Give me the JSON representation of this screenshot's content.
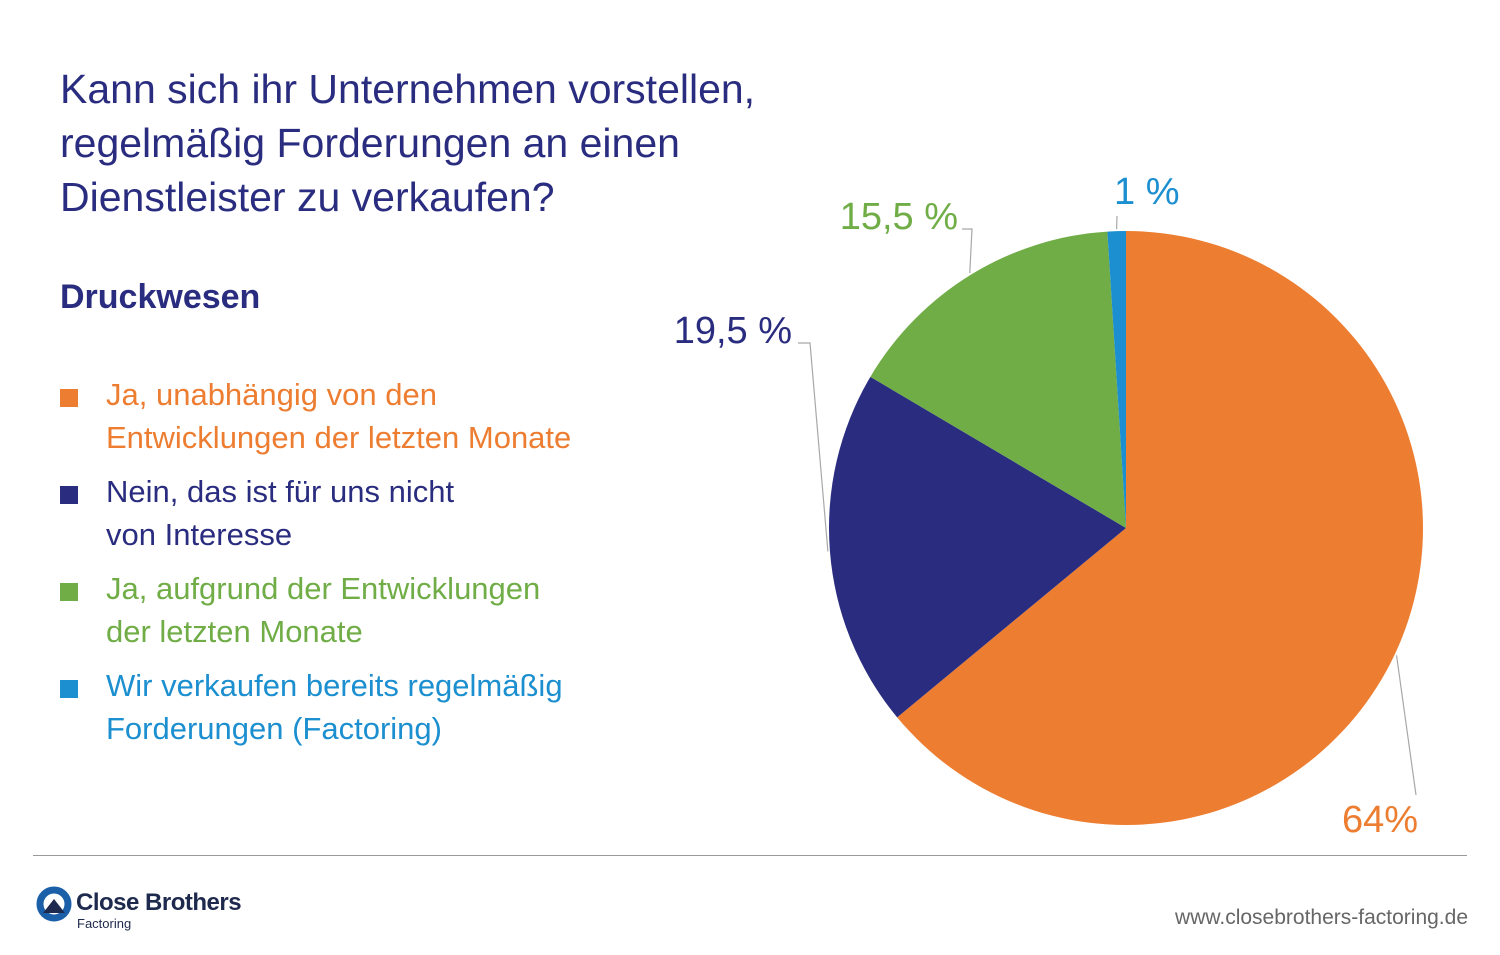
{
  "title_lines": [
    "Kann sich ihr Unternehmen vorstellen,",
    "regelmäßig Forderungen an einen",
    "Dienstleister zu verkaufen?"
  ],
  "subtitle": "Druckwesen",
  "legend": [
    {
      "lines": [
        "Ja, unabhängig von den",
        "Entwicklungen der letzten Monate"
      ],
      "color": "#ed7d31"
    },
    {
      "lines": [
        "Nein, das ist für uns nicht",
        "von Interesse"
      ],
      "color": "#2a2d7f"
    },
    {
      "lines": [
        "Ja, aufgrund der Entwicklungen",
        "der letzten Monate"
      ],
      "color": "#70ad47"
    },
    {
      "lines": [
        "Wir verkaufen bereits regelmäßig",
        "Forderungen (Factoring)"
      ],
      "color": "#1b8fcf"
    }
  ],
  "chart_data": {
    "type": "pie",
    "start_angle_deg": 0,
    "direction": "clockwise",
    "slices": [
      {
        "label": "Ja, unabhängig von den Entwicklungen der letzten Monate",
        "value": 64,
        "display": "64%",
        "color": "#ed7d31"
      },
      {
        "label": "Nein, das ist für uns nicht von Interesse",
        "value": 19.5,
        "display": "19,5 %",
        "color": "#2a2d7f"
      },
      {
        "label": "Ja, aufgrund der Entwicklungen der letzten Monate",
        "value": 15.5,
        "display": "15,5 %",
        "color": "#70ad47"
      },
      {
        "label": "Wir verkaufen bereits regelmäßig Forderungen (Factoring)",
        "value": 1,
        "display": "1 %",
        "color": "#1b8fcf"
      }
    ]
  },
  "footer": {
    "brand_name": "Close Brothers",
    "brand_sub": "Factoring",
    "url": "www.closebrothers-factoring.de",
    "logo_colors": {
      "ring": "#1b5fa8",
      "peak": "#1e2a4d"
    }
  }
}
